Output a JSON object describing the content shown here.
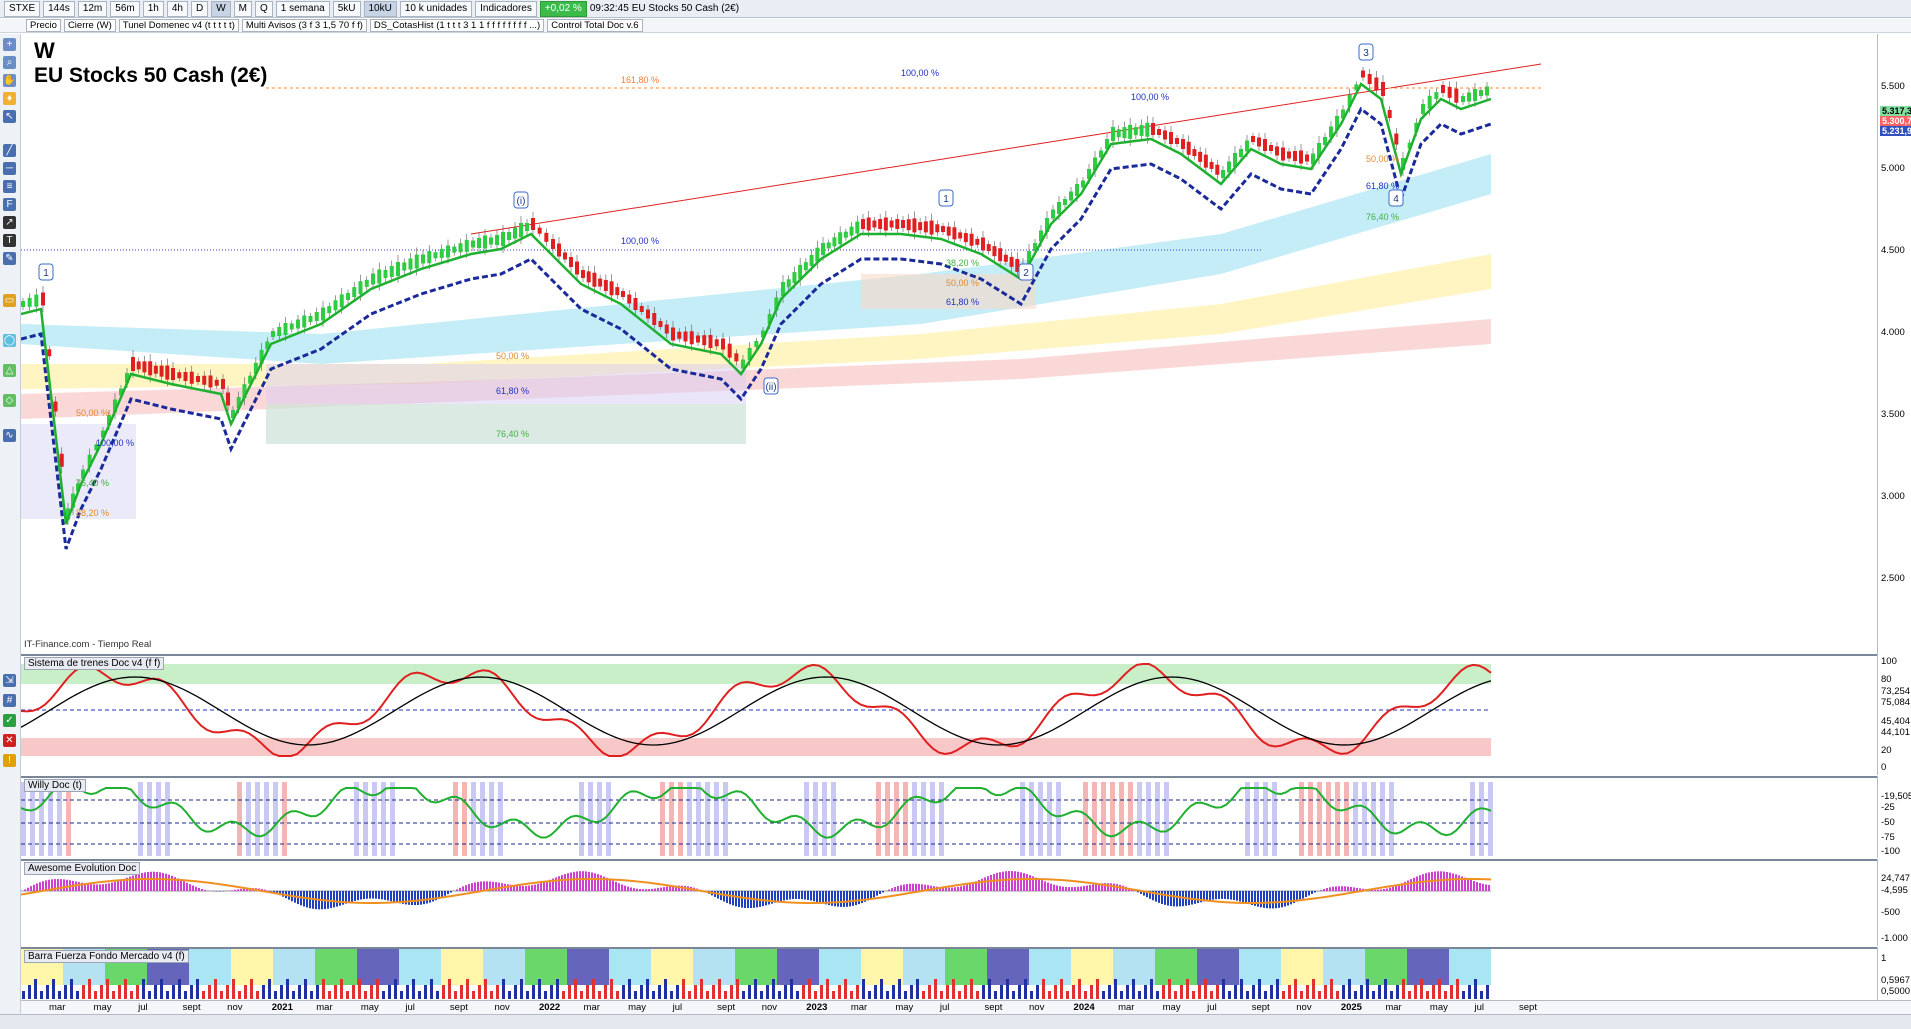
{
  "toolbar": {
    "symbol": "STXE",
    "periods": [
      "144s",
      "12m",
      "56m",
      "1h",
      "4h",
      "D",
      "W",
      "M",
      "Q"
    ],
    "active_period": "W",
    "range": "1 semana",
    "units_a": "5kU",
    "units_b": "10kU",
    "units_c": "10 k unidades",
    "indicators": "Indicadores",
    "change": "+0,02 %",
    "time": "09:32:45",
    "name": "EU Stocks 50 Cash (2€)"
  },
  "indicator_bar": [
    "Precio",
    "Cierre (W)",
    "Tunel Domenec v4 (t t t t t)",
    "Multi Avisos (3 f 3 1,5 70 f f)",
    "DS_CotasHist (1 t t t 3 1 1 f f f f f f f f ...)",
    "Control Total Doc v.6"
  ],
  "chart": {
    "period_letter": "W",
    "title": "EU Stocks 50 Cash (2€)",
    "source": "IT-Finance.com - Tiempo Real",
    "wave_labels": [
      "1",
      "(i)",
      "(ii)",
      "1",
      "2",
      "3",
      "4"
    ],
    "fib_labels": [
      "161,80 %",
      "100,00 %",
      "100,00 %",
      "100,00 %",
      "50,00 %",
      "61,80 %",
      "76,40 %",
      "38,20 %",
      "50,00 %",
      "61,80 %",
      "50,00 %",
      "61,80 %",
      "76,40 %",
      "50,00 %",
      "100,00 %",
      "76,40 %",
      "88,20 %"
    ],
    "price_ticks": [
      "5.500",
      "5.000",
      "4.500",
      "4.000",
      "3.500",
      "3.000",
      "2.500"
    ],
    "price_tags": [
      "5.317,3",
      "5.300,7",
      "5.231,9"
    ]
  },
  "panels": [
    {
      "name": "Sistema de trenes Doc v4 (f f)",
      "ticks": [
        "100",
        "80",
        "73,254",
        "75,084",
        "45,404",
        "44,101",
        "20",
        "0"
      ]
    },
    {
      "name": "Willy Doc (t)",
      "ticks": [
        "-19,505",
        "-25",
        "-50",
        "-75",
        "-100"
      ]
    },
    {
      "name": "Awesome Evolution Doc",
      "ticks": [
        "24,747",
        "-4,595",
        "-500",
        "-1.000"
      ]
    },
    {
      "name": "Barra Fuerza Fondo Mercado v4 (f)",
      "ticks": [
        "1",
        "0,5967",
        "0,5000"
      ]
    }
  ],
  "x_axis": [
    "mar",
    "may",
    "jul",
    "sept",
    "nov",
    "2021",
    "mar",
    "may",
    "jul",
    "sept",
    "nov",
    "2022",
    "mar",
    "may",
    "jul",
    "sept",
    "nov",
    "2023",
    "mar",
    "may",
    "jul",
    "sept",
    "nov",
    "2024",
    "mar",
    "may",
    "jul",
    "sept",
    "nov",
    "2025",
    "mar",
    "may",
    "jul",
    "sept"
  ],
  "colors": {
    "up": "#2ecc40",
    "down": "#e02020",
    "trend": "#1b2a9a",
    "cloud1": "#7fd8f0",
    "cloud2": "#fde97a",
    "cloud3": "#f6a8a8"
  }
}
